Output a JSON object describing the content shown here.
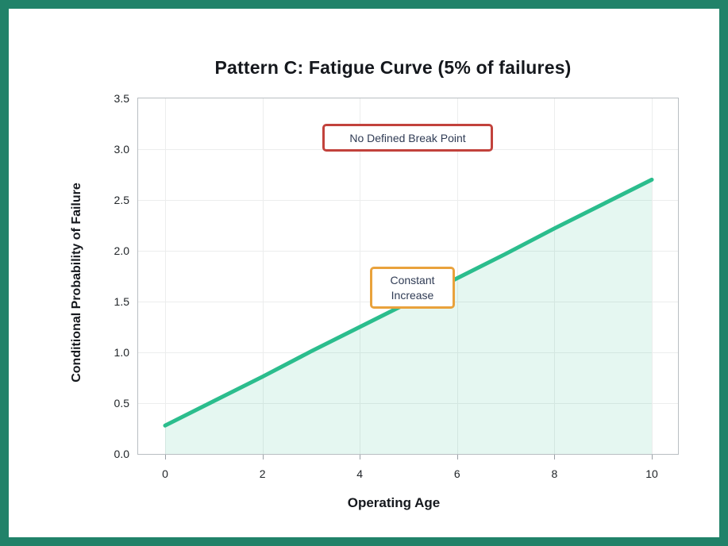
{
  "title": "Pattern C: Fatigue Curve (5% of failures)",
  "colors": {
    "frame": "#218269",
    "line": "#2bbd8d",
    "fill": "#2bbd8d",
    "fill_opacity": "0.12",
    "grid": "#eceded",
    "plot_border": "#b9bec2",
    "tick_mark": "#9aa0a6",
    "annotation_text": "#303c55",
    "break_point_border": "#c2423c",
    "constant_border": "#e9a23c"
  },
  "annotations": {
    "no_break_point": "No Defined Break Point",
    "constant_increase": "Constant\nIncrease"
  },
  "chart_data": {
    "type": "area",
    "title": "Pattern C: Fatigue Curve (5% of failures)",
    "xlabel": "Operating Age",
    "ylabel": "Conditional Probability of Failure",
    "x": [
      0,
      1,
      2,
      3,
      4,
      5,
      6,
      7,
      8,
      9,
      10
    ],
    "values": [
      0.28,
      0.52,
      0.76,
      1.01,
      1.25,
      1.49,
      1.73,
      1.97,
      2.22,
      2.46,
      2.7
    ],
    "shape": "linear",
    "xlim": [
      0,
      10
    ],
    "ylim": [
      0,
      3.5
    ],
    "x_ticks": [
      0,
      2,
      4,
      6,
      8,
      10
    ],
    "y_ticks": [
      0.0,
      0.5,
      1.0,
      1.5,
      2.0,
      2.5,
      3.0,
      3.5
    ],
    "grid": true,
    "legend": "none",
    "annotations": [
      {
        "text": "No Defined Break Point",
        "border": "#c2423c",
        "x": 5.0,
        "y": 3.15
      },
      {
        "text": "Constant Increase",
        "border": "#e9a23c",
        "x": 5.1,
        "y": 1.6
      }
    ]
  }
}
